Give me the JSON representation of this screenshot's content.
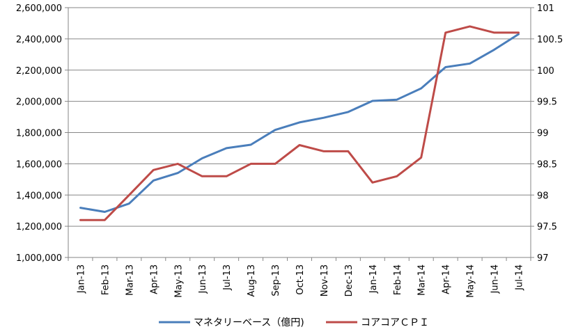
{
  "chart_data": {
    "type": "line",
    "title": "",
    "xlabel": "",
    "categories": [
      "Jan-13",
      "Feb-13",
      "Mar-13",
      "Apr-13",
      "May-13",
      "Jun-13",
      "Jul-13",
      "Aug-13",
      "Sep-13",
      "Oct-13",
      "Nov-13",
      "Dec-13",
      "Jan-14",
      "Feb-14",
      "Mar-14",
      "Apr-14",
      "May-14",
      "Jun-14",
      "Jul-14"
    ],
    "y_left": {
      "range": [
        1000000,
        2600000
      ],
      "ticks": [
        1000000,
        1200000,
        1400000,
        1600000,
        1800000,
        2000000,
        2200000,
        2400000,
        2600000
      ],
      "tick_labels": [
        "1,000,000",
        "1,200,000",
        "1,400,000",
        "1,600,000",
        "1,800,000",
        "2,000,000",
        "2,200,000",
        "2,400,000",
        "2,600,000"
      ]
    },
    "y_right": {
      "range": [
        97,
        101
      ],
      "ticks": [
        97,
        97.5,
        98,
        98.5,
        99,
        99.5,
        100,
        100.5,
        101
      ],
      "tick_labels": [
        "97",
        "97.5",
        "98",
        "98.5",
        "99",
        "99.5",
        "100",
        "100.5",
        "101"
      ]
    },
    "grid": "horizontal",
    "legend_position": "bottom",
    "series": [
      {
        "name": "マネタリーベース（億円)",
        "axis": "left",
        "color": "#4a7ebb",
        "values": [
          1318000,
          1292000,
          1345000,
          1493000,
          1541000,
          1635000,
          1700000,
          1722000,
          1817000,
          1865000,
          1895000,
          1932000,
          2003000,
          2011000,
          2083000,
          2219000,
          2242000,
          2331000,
          2430000
        ]
      },
      {
        "name": "コアコアＣＰＩ",
        "axis": "right",
        "color": "#be4b48",
        "values": [
          97.6,
          97.6,
          98.0,
          98.4,
          98.5,
          98.3,
          98.3,
          98.5,
          98.5,
          98.8,
          98.7,
          98.7,
          98.2,
          98.3,
          98.6,
          100.6,
          100.7,
          100.6,
          100.6
        ]
      }
    ]
  }
}
